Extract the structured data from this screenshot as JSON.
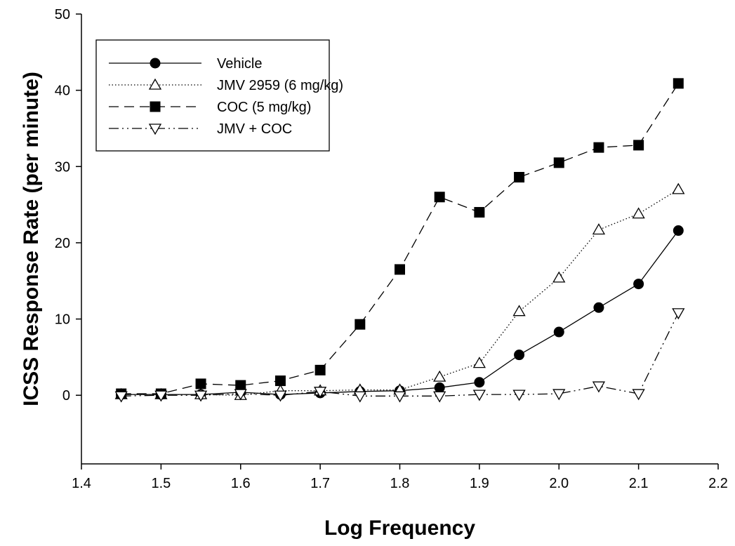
{
  "chart_data": {
    "type": "line",
    "title": "",
    "xlabel": "Log Frequency",
    "ylabel": "ICSS Response Rate (per minute)",
    "xlim": [
      1.4,
      2.2
    ],
    "ylim": [
      -9,
      50
    ],
    "xticks": [
      1.4,
      1.5,
      1.6,
      1.7,
      1.8,
      1.9,
      2.0,
      2.1,
      2.2
    ],
    "xtick_labels": [
      "1.4",
      "1.5",
      "1.6",
      "1.7",
      "1.8",
      "1.9",
      "2.0",
      "2.1",
      "2.2"
    ],
    "yticks": [
      0,
      10,
      20,
      30,
      40,
      50
    ],
    "ytick_labels": [
      "0",
      "10",
      "20",
      "30",
      "40",
      "50"
    ],
    "grid": false,
    "legend_position": "top-left",
    "x": [
      1.45,
      1.5,
      1.55,
      1.6,
      1.65,
      1.7,
      1.75,
      1.8,
      1.85,
      1.9,
      1.95,
      2.0,
      2.05,
      2.1,
      2.15
    ],
    "series": [
      {
        "name": "Vehicle",
        "marker": "circle-filled",
        "line": "solid",
        "values": [
          0.1,
          0.1,
          0.1,
          0.4,
          0.1,
          0.3,
          0.5,
          0.6,
          1.0,
          1.7,
          5.3,
          8.3,
          11.5,
          14.6,
          21.6
        ]
      },
      {
        "name": "JMV 2959 (6 mg/kg)",
        "marker": "triangle-up-open",
        "line": "dotted",
        "values": [
          0.1,
          0.1,
          0.1,
          0.0,
          0.6,
          0.6,
          0.7,
          0.7,
          2.4,
          4.2,
          11.0,
          15.4,
          21.7,
          23.8,
          27.0
        ]
      },
      {
        "name": "COC (5 mg/kg)",
        "marker": "square-filled",
        "line": "dashed",
        "values": [
          0.2,
          0.2,
          1.5,
          1.3,
          1.9,
          3.3,
          9.3,
          16.5,
          26.0,
          24.0,
          28.6,
          30.5,
          32.5,
          32.8,
          40.9
        ]
      },
      {
        "name": "JMV + COC",
        "marker": "triangle-down-open",
        "line": "dash-dot-dot",
        "values": [
          -0.1,
          0.0,
          0.0,
          0.2,
          0.0,
          0.5,
          -0.1,
          -0.1,
          -0.1,
          0.1,
          0.1,
          0.2,
          1.2,
          0.2,
          10.8
        ]
      }
    ]
  }
}
